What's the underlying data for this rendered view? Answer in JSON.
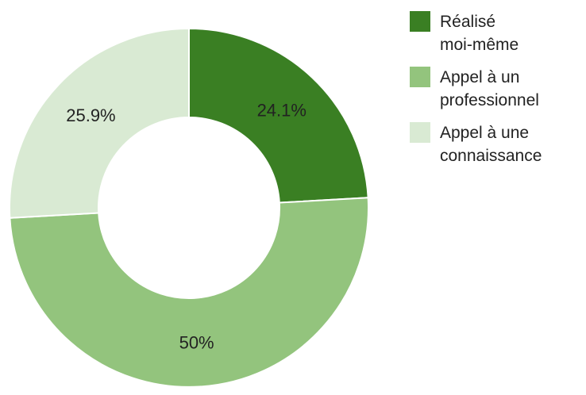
{
  "chart_data": {
    "type": "pie",
    "donut": true,
    "categories": [
      "Réalisé moi-même",
      "Appel à un professionnel",
      "Appel à une connaissance"
    ],
    "values": [
      24.1,
      50,
      25.9
    ],
    "value_labels": [
      "24.1%",
      "50%",
      "25.9%"
    ],
    "colors": [
      "#3a7f23",
      "#93c47d",
      "#d9ead3"
    ],
    "legend": {
      "position": "right",
      "entries": [
        {
          "lines": [
            "Réalisé",
            "moi-même"
          ]
        },
        {
          "lines": [
            "Appel à un",
            "professionnel"
          ]
        },
        {
          "lines": [
            "Appel à une",
            "connaissance"
          ]
        }
      ]
    },
    "title": ""
  }
}
